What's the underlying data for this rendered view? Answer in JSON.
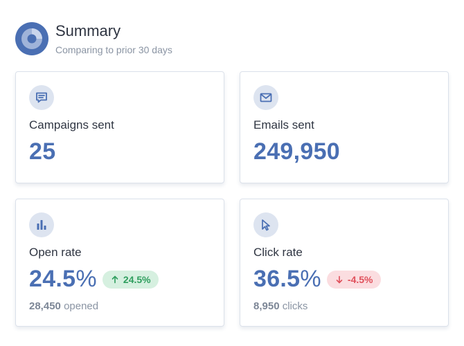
{
  "header": {
    "title": "Summary",
    "subtitle": "Comparing to prior 30 days",
    "icon": "pie-chart-logo-icon"
  },
  "colors": {
    "accent": "#4a6fb3",
    "icon_bg": "#dde4f0",
    "positive": "#2f9e5e",
    "positive_bg": "#d6f0e0",
    "negative": "#e0505b",
    "negative_bg": "#fbdde0"
  },
  "cards": [
    {
      "icon": "message-icon",
      "label": "Campaigns sent",
      "value": "25"
    },
    {
      "icon": "envelope-icon",
      "label": "Emails sent",
      "value": "249,950"
    },
    {
      "icon": "bar-chart-icon",
      "label": "Open rate",
      "value_number": "24.5",
      "value_unit": "%",
      "change": "24.5%",
      "change_direction": "up",
      "sub_count": "28,450",
      "sub_label": "opened"
    },
    {
      "icon": "cursor-icon",
      "label": "Click rate",
      "value_number": "36.5",
      "value_unit": "%",
      "change": "-4.5%",
      "change_direction": "down",
      "sub_count": "8,950",
      "sub_label": "clicks"
    }
  ]
}
